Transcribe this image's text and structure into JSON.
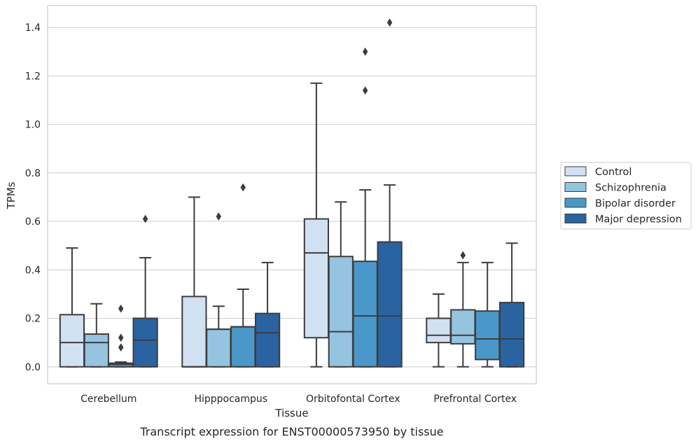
{
  "caption": "Transcript expression for ENST00000573950 by tissue",
  "chart_data": {
    "type": "box",
    "xlabel": "Tissue",
    "ylabel": "TPMs",
    "ylim": [
      -0.07,
      1.49
    ],
    "yticks": [
      0.0,
      0.2,
      0.4,
      0.6,
      0.8,
      1.0,
      1.2,
      1.4
    ],
    "ytick_labels": [
      "0.0",
      "0.2",
      "0.4",
      "0.6",
      "0.8",
      "1.0",
      "1.2",
      "1.4"
    ],
    "grid": "horizontal",
    "legend_position": "right",
    "categories": [
      "Cerebellum",
      "Hipppocampus",
      "Orbitofontal Cortex",
      "Prefrontal Cortex"
    ],
    "series": [
      {
        "name": "Control",
        "color": "#d0e1f2",
        "boxes": [
          {
            "whisker_low": 0.0,
            "q1": 0.0,
            "median": 0.1,
            "q3": 0.215,
            "whisker_high": 0.49,
            "outliers": []
          },
          {
            "whisker_low": 0.0,
            "q1": 0.0,
            "median": 0.0,
            "q3": 0.29,
            "whisker_high": 0.7,
            "outliers": []
          },
          {
            "whisker_low": 0.0,
            "q1": 0.12,
            "median": 0.47,
            "q3": 0.61,
            "whisker_high": 1.17,
            "outliers": []
          },
          {
            "whisker_low": 0.0,
            "q1": 0.1,
            "median": 0.13,
            "q3": 0.2,
            "whisker_high": 0.3,
            "outliers": []
          }
        ]
      },
      {
        "name": "Schizophrenia",
        "color": "#94c4df",
        "boxes": [
          {
            "whisker_low": 0.0,
            "q1": 0.0,
            "median": 0.1,
            "q3": 0.135,
            "whisker_high": 0.26,
            "outliers": []
          },
          {
            "whisker_low": 0.0,
            "q1": 0.0,
            "median": 0.155,
            "q3": 0.155,
            "whisker_high": 0.25,
            "outliers": [
              0.62
            ]
          },
          {
            "whisker_low": 0.0,
            "q1": 0.0,
            "median": 0.145,
            "q3": 0.455,
            "whisker_high": 0.68,
            "outliers": []
          },
          {
            "whisker_low": 0.0,
            "q1": 0.095,
            "median": 0.13,
            "q3": 0.235,
            "whisker_high": 0.43,
            "outliers": [
              0.46
            ]
          }
        ]
      },
      {
        "name": "Bipolar disorder",
        "color": "#4a98c9",
        "boxes": [
          {
            "whisker_low": 0.0,
            "q1": 0.0,
            "median": 0.01,
            "q3": 0.015,
            "whisker_high": 0.02,
            "outliers": [
              0.08,
              0.12,
              0.24
            ]
          },
          {
            "whisker_low": 0.0,
            "q1": 0.0,
            "median": 0.165,
            "q3": 0.165,
            "whisker_high": 0.32,
            "outliers": [
              0.74
            ]
          },
          {
            "whisker_low": 0.0,
            "q1": 0.0,
            "median": 0.21,
            "q3": 0.435,
            "whisker_high": 0.73,
            "outliers": [
              1.14,
              1.3
            ]
          },
          {
            "whisker_low": 0.0,
            "q1": 0.03,
            "median": 0.115,
            "q3": 0.23,
            "whisker_high": 0.43,
            "outliers": []
          }
        ]
      },
      {
        "name": "Major depression",
        "color": "#2a63a2",
        "boxes": [
          {
            "whisker_low": 0.0,
            "q1": 0.0,
            "median": 0.11,
            "q3": 0.2,
            "whisker_high": 0.45,
            "outliers": [
              0.61
            ]
          },
          {
            "whisker_low": 0.0,
            "q1": 0.0,
            "median": 0.14,
            "q3": 0.22,
            "whisker_high": 0.43,
            "outliers": []
          },
          {
            "whisker_low": 0.0,
            "q1": 0.0,
            "median": 0.21,
            "q3": 0.515,
            "whisker_high": 0.75,
            "outliers": [
              1.42
            ]
          },
          {
            "whisker_low": 0.0,
            "q1": 0.0,
            "median": 0.115,
            "q3": 0.265,
            "whisker_high": 0.51,
            "outliers": []
          }
        ]
      }
    ]
  }
}
